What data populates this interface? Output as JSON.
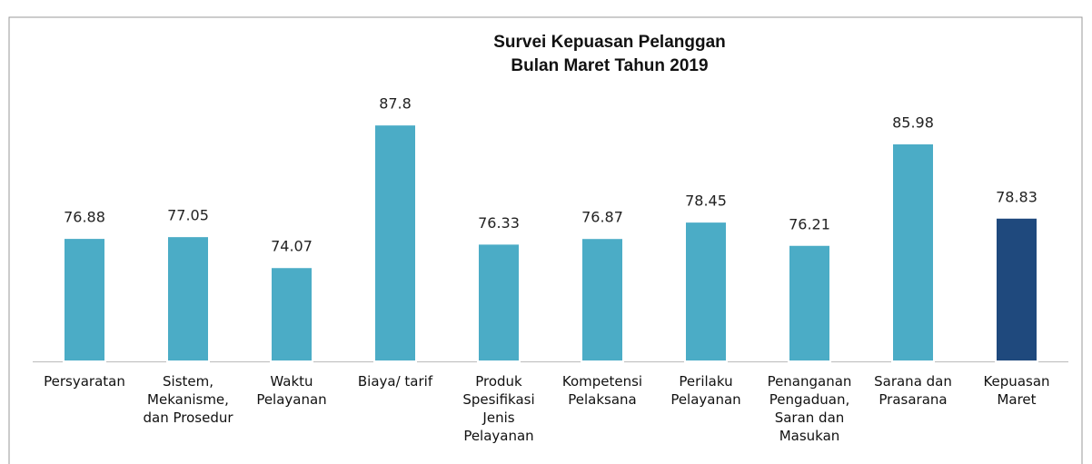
{
  "chart_data": {
    "type": "bar",
    "title": "Survei Kepuasan Pelanggan",
    "subtitle": "Bulan Maret Tahun 2019",
    "categories": [
      "Persyaratan",
      "Sistem, Mekanisme, dan Prosedur",
      "Waktu Pelayanan",
      "Biaya/ tarif",
      "Produk Spesifikasi Jenis Pelayanan",
      "Kompetensi Pelaksana",
      "Perilaku Pelayanan",
      "Penanganan Pengaduan, Saran dan Masukan",
      "Sarana dan Prasarana",
      "Kepuasan Maret"
    ],
    "values": [
      76.88,
      77.05,
      74.07,
      87.8,
      76.33,
      76.87,
      78.45,
      76.21,
      85.98,
      78.83
    ],
    "colors": [
      "#4bacc6",
      "#4bacc6",
      "#4bacc6",
      "#4bacc6",
      "#4bacc6",
      "#4bacc6",
      "#4bacc6",
      "#4bacc6",
      "#4bacc6",
      "#1f497d"
    ],
    "ylim": [
      65,
      90
    ]
  }
}
